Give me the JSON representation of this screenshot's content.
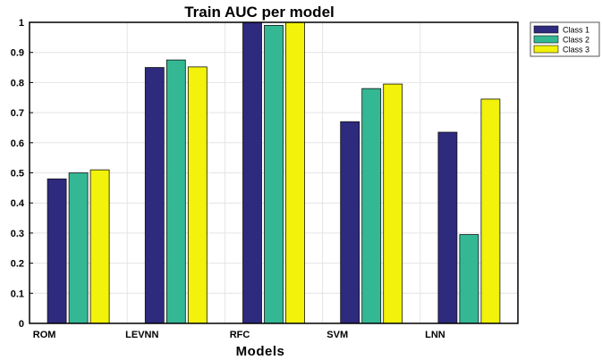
{
  "chart_data": {
    "type": "bar",
    "title": "Train AUC per model",
    "xlabel": "Models",
    "ylabel": "",
    "ylim": [
      0,
      1
    ],
    "yticks": [
      "0",
      "0.1",
      "0.2",
      "0.3",
      "0.4",
      "0.5",
      "0.6",
      "0.7",
      "0.8",
      "0.9",
      "1"
    ],
    "categories": [
      "ROM",
      "LEVNN",
      "RFC",
      "SVM",
      "LNN"
    ],
    "series": [
      {
        "name": "Class 1",
        "color": "#2e2a7e",
        "values": [
          0.48,
          0.85,
          1.0,
          0.67,
          0.635
        ]
      },
      {
        "name": "Class 2",
        "color": "#34b894",
        "values": [
          0.5,
          0.875,
          0.99,
          0.78,
          0.295
        ]
      },
      {
        "name": "Class 3",
        "color": "#f2f20a",
        "values": [
          0.51,
          0.852,
          1.0,
          0.795,
          0.745
        ]
      }
    ],
    "grid": true,
    "legend": "top-right"
  }
}
